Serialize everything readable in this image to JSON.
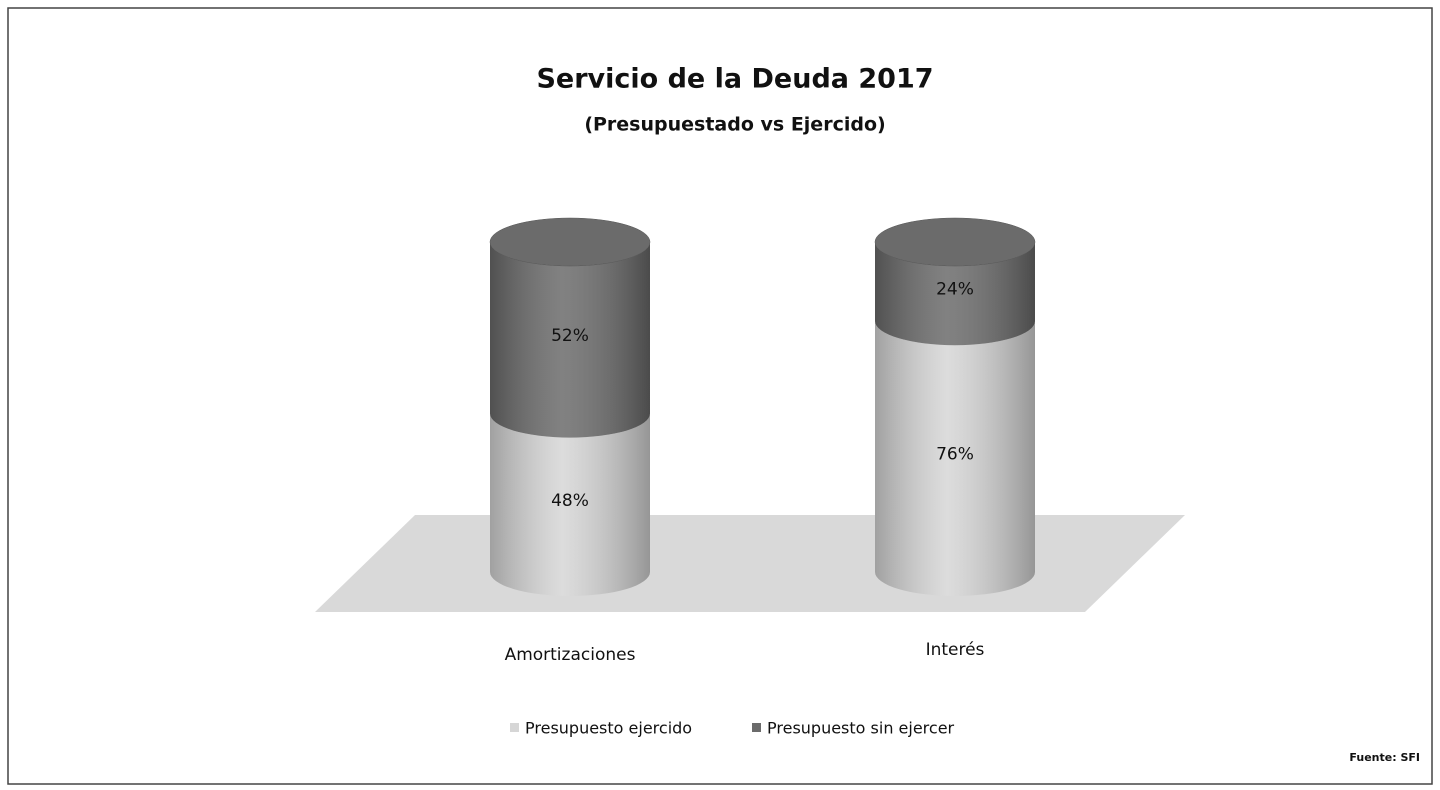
{
  "chart_data": {
    "type": "bar3d_stacked",
    "title": "Servicio de la Deuda 2017",
    "subtitle": "(Presupuestado vs Ejercido)",
    "categories": [
      "Amortizaciones",
      "Interés"
    ],
    "series": [
      {
        "name": "Presupuesto ejercido",
        "color": "#d6d6d6",
        "values": [
          48,
          76
        ],
        "value_labels": [
          "48%",
          "76%"
        ]
      },
      {
        "name": "Presupuesto sin ejercer",
        "color": "#6b6b6b",
        "values": [
          52,
          24
        ],
        "value_labels": [
          "52%",
          "24%"
        ]
      }
    ],
    "source": "Fuente: SFI"
  }
}
